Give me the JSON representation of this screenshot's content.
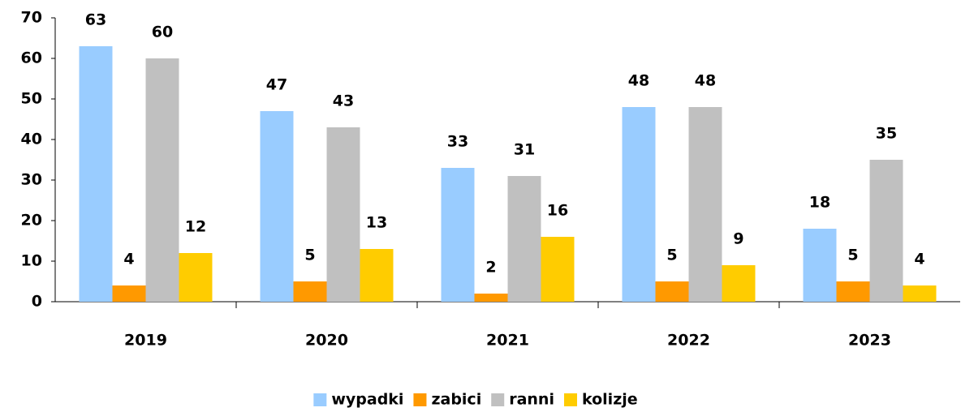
{
  "chart_data": {
    "type": "bar",
    "categories": [
      "2019",
      "2020",
      "2021",
      "2022",
      "2023"
    ],
    "series": [
      {
        "name": "wypadki",
        "color": "#99ccff",
        "values": [
          63,
          47,
          33,
          48,
          18
        ]
      },
      {
        "name": "zabici",
        "color": "#ff9900",
        "values": [
          4,
          5,
          2,
          5,
          5
        ]
      },
      {
        "name": "ranni",
        "color": "#c0c0c0",
        "values": [
          60,
          43,
          31,
          48,
          35
        ]
      },
      {
        "name": "kolizje",
        "color": "#ffcc00",
        "values": [
          12,
          13,
          16,
          9,
          4
        ]
      }
    ],
    "ylim": [
      0,
      70
    ],
    "yticks": [
      0,
      10,
      20,
      30,
      40,
      50,
      60,
      70
    ],
    "legend": "bottom"
  }
}
